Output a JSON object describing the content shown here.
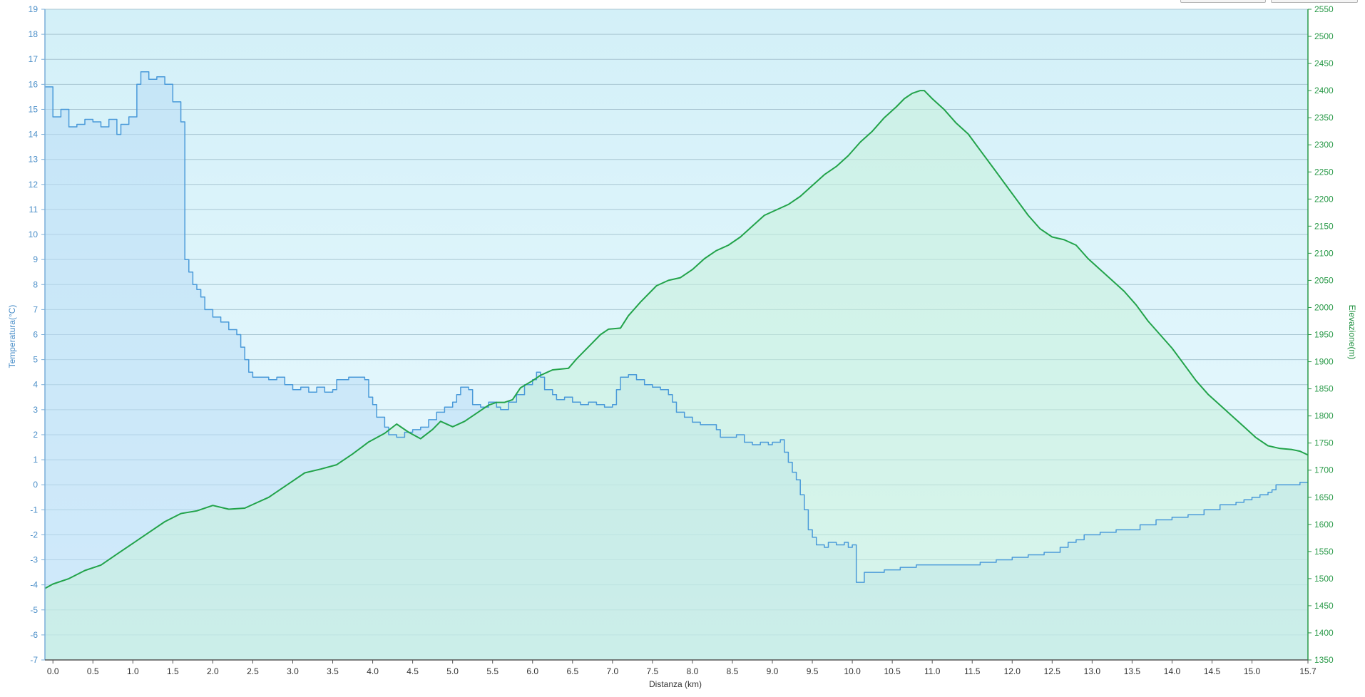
{
  "chart_data": {
    "type": "area",
    "xlabel": "Distanza  (km)",
    "ylabel_left": "Temperatura(°C)",
    "ylabel_right": "Elevazione(m)",
    "xlim": [
      -0.1,
      15.7
    ],
    "ylim_left": [
      -7,
      19
    ],
    "ylim_right": [
      1350,
      2550
    ],
    "x_ticks": [
      "0.0",
      "0.5",
      "1.0",
      "1.5",
      "2.0",
      "2.5",
      "3.0",
      "3.5",
      "4.0",
      "4.5",
      "5.0",
      "5.5",
      "6.0",
      "6.5",
      "7.0",
      "7.5",
      "8.0",
      "8.5",
      "9.0",
      "9.5",
      "10.0",
      "10.5",
      "11.0",
      "11.5",
      "12.0",
      "12.5",
      "13.0",
      "13.5",
      "14.0",
      "14.5",
      "15.0",
      "15.7"
    ],
    "y_ticks_left": [
      -7,
      -6,
      -5,
      -4,
      -3,
      -2,
      -1,
      0,
      1,
      2,
      3,
      4,
      5,
      6,
      7,
      8,
      9,
      10,
      11,
      12,
      13,
      14,
      15,
      16,
      17,
      18,
      19
    ],
    "y_ticks_right": [
      1350,
      1400,
      1450,
      1500,
      1550,
      1600,
      1650,
      1700,
      1750,
      1800,
      1850,
      1900,
      1950,
      2000,
      2050,
      2100,
      2150,
      2200,
      2250,
      2300,
      2350,
      2400,
      2450,
      2500,
      2550
    ],
    "grid": true,
    "series": [
      {
        "axis": "left",
        "color": "#4a9ad9",
        "fill": "#b9ddf5",
        "step": true,
        "points": [
          [
            -0.1,
            15.9
          ],
          [
            0.0,
            14.7
          ],
          [
            0.1,
            15.0
          ],
          [
            0.2,
            14.3
          ],
          [
            0.3,
            14.4
          ],
          [
            0.4,
            14.6
          ],
          [
            0.5,
            14.5
          ],
          [
            0.6,
            14.3
          ],
          [
            0.7,
            14.6
          ],
          [
            0.8,
            14.0
          ],
          [
            0.85,
            14.4
          ],
          [
            0.95,
            14.7
          ],
          [
            1.05,
            16.0
          ],
          [
            1.1,
            16.5
          ],
          [
            1.2,
            16.2
          ],
          [
            1.3,
            16.3
          ],
          [
            1.4,
            16.0
          ],
          [
            1.5,
            15.3
          ],
          [
            1.6,
            14.5
          ],
          [
            1.65,
            9.0
          ],
          [
            1.7,
            8.5
          ],
          [
            1.75,
            8.0
          ],
          [
            1.8,
            7.8
          ],
          [
            1.85,
            7.5
          ],
          [
            1.9,
            7.0
          ],
          [
            2.0,
            6.7
          ],
          [
            2.1,
            6.5
          ],
          [
            2.2,
            6.2
          ],
          [
            2.3,
            6.0
          ],
          [
            2.35,
            5.5
          ],
          [
            2.4,
            5.0
          ],
          [
            2.45,
            4.5
          ],
          [
            2.5,
            4.3
          ],
          [
            2.7,
            4.2
          ],
          [
            2.8,
            4.3
          ],
          [
            2.9,
            4.0
          ],
          [
            3.0,
            3.8
          ],
          [
            3.1,
            3.9
          ],
          [
            3.2,
            3.7
          ],
          [
            3.3,
            3.9
          ],
          [
            3.4,
            3.7
          ],
          [
            3.5,
            3.8
          ],
          [
            3.55,
            4.2
          ],
          [
            3.7,
            4.3
          ],
          [
            3.9,
            4.2
          ],
          [
            3.95,
            3.5
          ],
          [
            4.0,
            3.2
          ],
          [
            4.05,
            2.7
          ],
          [
            4.15,
            2.3
          ],
          [
            4.2,
            2.0
          ],
          [
            4.3,
            1.9
          ],
          [
            4.4,
            2.1
          ],
          [
            4.5,
            2.2
          ],
          [
            4.6,
            2.3
          ],
          [
            4.7,
            2.6
          ],
          [
            4.8,
            2.9
          ],
          [
            4.9,
            3.1
          ],
          [
            5.0,
            3.3
          ],
          [
            5.05,
            3.6
          ],
          [
            5.1,
            3.9
          ],
          [
            5.2,
            3.8
          ],
          [
            5.25,
            3.2
          ],
          [
            5.35,
            3.1
          ],
          [
            5.45,
            3.3
          ],
          [
            5.55,
            3.1
          ],
          [
            5.6,
            3.0
          ],
          [
            5.7,
            3.3
          ],
          [
            5.8,
            3.6
          ],
          [
            5.9,
            4.0
          ],
          [
            6.0,
            4.2
          ],
          [
            6.05,
            4.5
          ],
          [
            6.1,
            4.3
          ],
          [
            6.15,
            3.8
          ],
          [
            6.25,
            3.6
          ],
          [
            6.3,
            3.4
          ],
          [
            6.4,
            3.5
          ],
          [
            6.5,
            3.3
          ],
          [
            6.6,
            3.2
          ],
          [
            6.7,
            3.3
          ],
          [
            6.8,
            3.2
          ],
          [
            6.9,
            3.1
          ],
          [
            7.0,
            3.2
          ],
          [
            7.05,
            3.8
          ],
          [
            7.1,
            4.3
          ],
          [
            7.2,
            4.4
          ],
          [
            7.3,
            4.2
          ],
          [
            7.4,
            4.0
          ],
          [
            7.5,
            3.9
          ],
          [
            7.6,
            3.8
          ],
          [
            7.7,
            3.6
          ],
          [
            7.75,
            3.3
          ],
          [
            7.8,
            2.9
          ],
          [
            7.9,
            2.7
          ],
          [
            8.0,
            2.5
          ],
          [
            8.1,
            2.4
          ],
          [
            8.2,
            2.4
          ],
          [
            8.3,
            2.2
          ],
          [
            8.35,
            1.9
          ],
          [
            8.45,
            1.9
          ],
          [
            8.55,
            2.0
          ],
          [
            8.65,
            1.7
          ],
          [
            8.75,
            1.6
          ],
          [
            8.85,
            1.7
          ],
          [
            8.95,
            1.6
          ],
          [
            9.0,
            1.7
          ],
          [
            9.1,
            1.8
          ],
          [
            9.15,
            1.3
          ],
          [
            9.2,
            0.9
          ],
          [
            9.25,
            0.5
          ],
          [
            9.3,
            0.2
          ],
          [
            9.35,
            -0.4
          ],
          [
            9.4,
            -1.0
          ],
          [
            9.45,
            -1.8
          ],
          [
            9.5,
            -2.1
          ],
          [
            9.55,
            -2.4
          ],
          [
            9.65,
            -2.5
          ],
          [
            9.7,
            -2.3
          ],
          [
            9.8,
            -2.4
          ],
          [
            9.9,
            -2.3
          ],
          [
            9.95,
            -2.5
          ],
          [
            10.0,
            -2.4
          ],
          [
            10.05,
            -3.9
          ],
          [
            10.15,
            -3.5
          ],
          [
            10.3,
            -3.5
          ],
          [
            10.4,
            -3.4
          ],
          [
            10.6,
            -3.3
          ],
          [
            10.8,
            -3.2
          ],
          [
            11.3,
            -3.2
          ],
          [
            11.6,
            -3.1
          ],
          [
            11.8,
            -3.0
          ],
          [
            12.0,
            -2.9
          ],
          [
            12.2,
            -2.8
          ],
          [
            12.4,
            -2.7
          ],
          [
            12.6,
            -2.5
          ],
          [
            12.7,
            -2.3
          ],
          [
            12.8,
            -2.2
          ],
          [
            12.9,
            -2.0
          ],
          [
            13.1,
            -1.9
          ],
          [
            13.3,
            -1.8
          ],
          [
            13.6,
            -1.6
          ],
          [
            13.8,
            -1.4
          ],
          [
            14.0,
            -1.3
          ],
          [
            14.2,
            -1.2
          ],
          [
            14.4,
            -1.0
          ],
          [
            14.6,
            -0.8
          ],
          [
            14.8,
            -0.7
          ],
          [
            14.9,
            -0.6
          ],
          [
            15.0,
            -0.5
          ],
          [
            15.1,
            -0.4
          ],
          [
            15.2,
            -0.3
          ],
          [
            15.25,
            -0.2
          ],
          [
            15.3,
            0.0
          ],
          [
            15.6,
            0.1
          ],
          [
            15.7,
            0.1
          ]
        ]
      },
      {
        "axis": "right",
        "color": "#22a34a",
        "fill": "#c7f0da",
        "step": false,
        "points": [
          [
            -0.1,
            1482
          ],
          [
            0.0,
            1490
          ],
          [
            0.2,
            1500
          ],
          [
            0.4,
            1515
          ],
          [
            0.6,
            1525
          ],
          [
            0.8,
            1545
          ],
          [
            1.0,
            1565
          ],
          [
            1.2,
            1585
          ],
          [
            1.4,
            1605
          ],
          [
            1.6,
            1620
          ],
          [
            1.8,
            1625
          ],
          [
            2.0,
            1635
          ],
          [
            2.2,
            1628
          ],
          [
            2.4,
            1630
          ],
          [
            2.55,
            1640
          ],
          [
            2.7,
            1650
          ],
          [
            2.85,
            1665
          ],
          [
            3.0,
            1680
          ],
          [
            3.15,
            1695
          ],
          [
            3.35,
            1702
          ],
          [
            3.55,
            1710
          ],
          [
            3.75,
            1730
          ],
          [
            3.95,
            1752
          ],
          [
            4.15,
            1768
          ],
          [
            4.3,
            1785
          ],
          [
            4.45,
            1770
          ],
          [
            4.6,
            1758
          ],
          [
            4.75,
            1775
          ],
          [
            4.85,
            1790
          ],
          [
            5.0,
            1780
          ],
          [
            5.15,
            1790
          ],
          [
            5.3,
            1805
          ],
          [
            5.45,
            1820
          ],
          [
            5.55,
            1825
          ],
          [
            5.65,
            1825
          ],
          [
            5.75,
            1830
          ],
          [
            5.85,
            1852
          ],
          [
            6.0,
            1865
          ],
          [
            6.1,
            1875
          ],
          [
            6.25,
            1885
          ],
          [
            6.45,
            1888
          ],
          [
            6.55,
            1905
          ],
          [
            6.75,
            1935
          ],
          [
            6.85,
            1950
          ],
          [
            6.95,
            1960
          ],
          [
            7.1,
            1962
          ],
          [
            7.2,
            1985
          ],
          [
            7.35,
            2010
          ],
          [
            7.55,
            2040
          ],
          [
            7.7,
            2050
          ],
          [
            7.85,
            2055
          ],
          [
            8.0,
            2070
          ],
          [
            8.15,
            2090
          ],
          [
            8.3,
            2105
          ],
          [
            8.45,
            2115
          ],
          [
            8.6,
            2130
          ],
          [
            8.75,
            2150
          ],
          [
            8.9,
            2170
          ],
          [
            9.05,
            2180
          ],
          [
            9.2,
            2190
          ],
          [
            9.35,
            2205
          ],
          [
            9.5,
            2225
          ],
          [
            9.65,
            2245
          ],
          [
            9.8,
            2260
          ],
          [
            9.95,
            2280
          ],
          [
            10.1,
            2305
          ],
          [
            10.25,
            2325
          ],
          [
            10.4,
            2350
          ],
          [
            10.55,
            2370
          ],
          [
            10.65,
            2385
          ],
          [
            10.75,
            2395
          ],
          [
            10.85,
            2400
          ],
          [
            10.9,
            2400
          ],
          [
            11.0,
            2385
          ],
          [
            11.15,
            2365
          ],
          [
            11.3,
            2340
          ],
          [
            11.45,
            2320
          ],
          [
            11.6,
            2290
          ],
          [
            11.75,
            2260
          ],
          [
            11.9,
            2230
          ],
          [
            12.05,
            2200
          ],
          [
            12.2,
            2170
          ],
          [
            12.35,
            2145
          ],
          [
            12.5,
            2130
          ],
          [
            12.65,
            2125
          ],
          [
            12.8,
            2115
          ],
          [
            12.95,
            2090
          ],
          [
            13.1,
            2070
          ],
          [
            13.25,
            2050
          ],
          [
            13.4,
            2030
          ],
          [
            13.55,
            2005
          ],
          [
            13.7,
            1975
          ],
          [
            13.85,
            1950
          ],
          [
            14.0,
            1925
          ],
          [
            14.15,
            1895
          ],
          [
            14.3,
            1865
          ],
          [
            14.45,
            1840
          ],
          [
            14.6,
            1820
          ],
          [
            14.75,
            1800
          ],
          [
            14.9,
            1780
          ],
          [
            15.05,
            1760
          ],
          [
            15.2,
            1745
          ],
          [
            15.35,
            1740
          ],
          [
            15.5,
            1738
          ],
          [
            15.6,
            1735
          ],
          [
            15.7,
            1728
          ]
        ]
      }
    ]
  }
}
